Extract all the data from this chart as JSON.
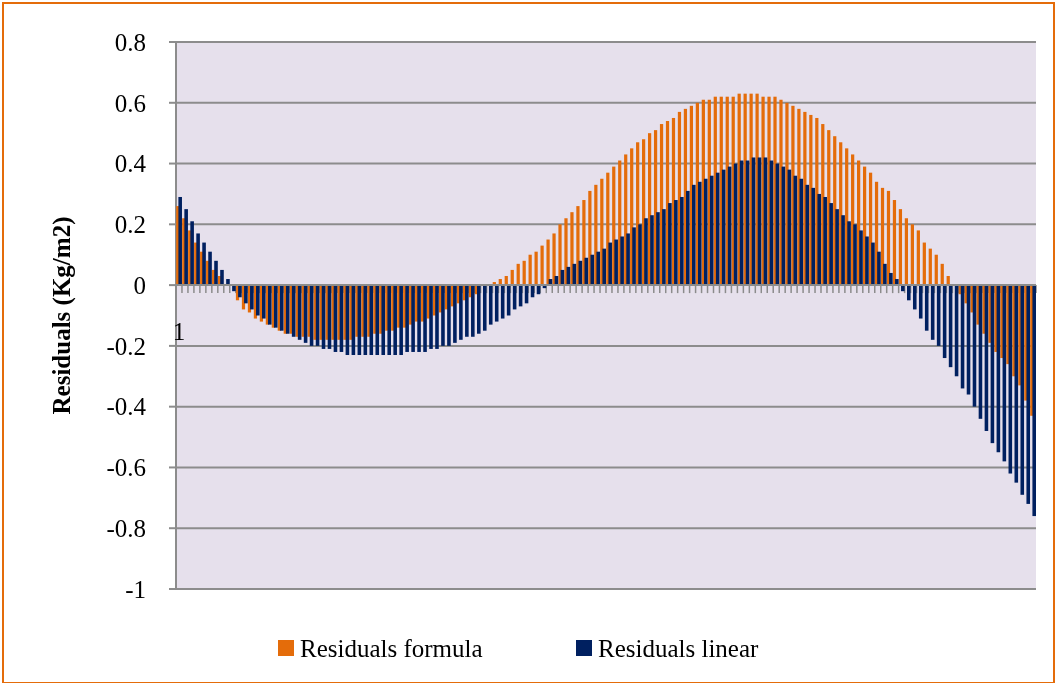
{
  "chart_data": {
    "type": "bar",
    "ylabel": "Residuals (Kg/m2)",
    "categories": [
      "1",
      null,
      null,
      null,
      null,
      null,
      null,
      null,
      null,
      null,
      null,
      null,
      null,
      null,
      null,
      null,
      null,
      null,
      null,
      null,
      null,
      null,
      null,
      null,
      null,
      null,
      null,
      null,
      null,
      null,
      null,
      null,
      null,
      null,
      null,
      null,
      null,
      null,
      null,
      null,
      null,
      null,
      null,
      null,
      null,
      null,
      null,
      null,
      null,
      null,
      null,
      null,
      null,
      null,
      null,
      null,
      null,
      null,
      null,
      null,
      null,
      null,
      null,
      null,
      null,
      null,
      null,
      null,
      null,
      null,
      null,
      null,
      null,
      null,
      null,
      null,
      null,
      null,
      null,
      null,
      null,
      null,
      null,
      null,
      null,
      null,
      null,
      null,
      null,
      null,
      null,
      null,
      null,
      null,
      null,
      null,
      null,
      null,
      null,
      null,
      null,
      null,
      null,
      null,
      null,
      null,
      null,
      null,
      null,
      null,
      null,
      null,
      null,
      null,
      null,
      null,
      null,
      null,
      null,
      null,
      null,
      null,
      null,
      null,
      null,
      null,
      null,
      null,
      null,
      null,
      null,
      null,
      null,
      null,
      null,
      null,
      null,
      null,
      null,
      null,
      null,
      null,
      null,
      null
    ],
    "series": [
      {
        "name": "Residuals formula",
        "color": "#e46c0a",
        "values": [
          0.26,
          0.22,
          0.18,
          0.14,
          0.11,
          0.08,
          0.05,
          0.03,
          null,
          null,
          -0.05,
          -0.08,
          -0.09,
          -0.11,
          -0.12,
          -0.13,
          -0.14,
          -0.15,
          -0.16,
          -0.16,
          -0.17,
          -0.17,
          -0.17,
          -0.18,
          -0.18,
          -0.18,
          -0.18,
          -0.18,
          -0.18,
          -0.18,
          -0.17,
          -0.17,
          -0.17,
          -0.16,
          -0.16,
          -0.15,
          -0.15,
          -0.14,
          -0.14,
          -0.13,
          -0.12,
          -0.12,
          -0.11,
          -0.1,
          -0.09,
          -0.08,
          -0.07,
          -0.06,
          -0.05,
          -0.04,
          -0.03,
          null,
          null,
          0.01,
          0.02,
          0.03,
          0.05,
          0.07,
          0.08,
          0.1,
          0.11,
          0.13,
          0.15,
          0.17,
          0.2,
          0.22,
          0.24,
          0.26,
          0.28,
          0.31,
          0.33,
          0.35,
          0.37,
          0.39,
          0.41,
          0.43,
          0.45,
          0.47,
          0.48,
          0.5,
          0.51,
          0.53,
          0.54,
          0.55,
          0.57,
          0.58,
          0.59,
          0.6,
          0.61,
          0.61,
          0.62,
          0.62,
          0.62,
          0.62,
          0.63,
          0.63,
          0.63,
          0.63,
          0.62,
          0.62,
          0.62,
          0.61,
          0.6,
          0.59,
          0.58,
          0.57,
          0.56,
          0.55,
          0.53,
          0.51,
          0.49,
          0.47,
          0.45,
          0.43,
          0.41,
          0.39,
          0.37,
          0.34,
          0.32,
          0.31,
          0.28,
          0.25,
          0.22,
          0.2,
          0.18,
          0.14,
          0.12,
          0.1,
          0.07,
          0.03,
          null,
          -0.03,
          -0.06,
          -0.09,
          -0.13,
          -0.16,
          -0.19,
          -0.22,
          -0.24,
          -0.26,
          -0.3,
          -0.33,
          -0.38,
          -0.43
        ]
      },
      {
        "name": "Residuals linear",
        "color": "#002060",
        "values": [
          0.29,
          0.25,
          0.21,
          0.17,
          0.14,
          0.11,
          0.08,
          0.05,
          0.02,
          -0.02,
          -0.04,
          -0.06,
          -0.08,
          -0.1,
          -0.11,
          -0.13,
          -0.14,
          -0.15,
          -0.16,
          -0.17,
          -0.18,
          -0.19,
          -0.2,
          -0.2,
          -0.21,
          -0.21,
          -0.22,
          -0.22,
          -0.23,
          -0.23,
          -0.23,
          -0.23,
          -0.23,
          -0.23,
          -0.23,
          -0.23,
          -0.23,
          -0.23,
          -0.22,
          -0.22,
          -0.22,
          -0.22,
          -0.21,
          -0.21,
          -0.2,
          -0.2,
          -0.19,
          -0.18,
          -0.17,
          -0.17,
          -0.16,
          -0.15,
          -0.13,
          -0.12,
          -0.11,
          -0.1,
          -0.08,
          -0.07,
          -0.06,
          -0.04,
          -0.03,
          -0.01,
          0.02,
          0.03,
          0.05,
          0.06,
          0.07,
          0.08,
          0.09,
          0.1,
          0.11,
          0.12,
          0.14,
          0.15,
          0.16,
          0.17,
          0.19,
          0.2,
          0.22,
          0.23,
          0.24,
          0.25,
          0.27,
          0.28,
          0.29,
          0.31,
          0.33,
          0.34,
          0.35,
          0.36,
          0.37,
          0.38,
          0.39,
          0.4,
          0.41,
          0.41,
          0.42,
          0.42,
          0.42,
          0.41,
          0.4,
          0.39,
          0.38,
          0.36,
          0.35,
          0.33,
          0.32,
          0.3,
          0.29,
          0.27,
          0.25,
          0.23,
          0.21,
          0.2,
          0.18,
          0.16,
          0.14,
          0.11,
          0.07,
          0.04,
          0.02,
          -0.02,
          -0.05,
          -0.08,
          -0.11,
          -0.15,
          -0.18,
          -0.2,
          -0.24,
          -0.27,
          -0.3,
          -0.34,
          -0.36,
          -0.4,
          -0.44,
          -0.48,
          -0.52,
          -0.55,
          -0.58,
          -0.62,
          -0.65,
          -0.69,
          -0.72,
          -0.76
        ]
      }
    ],
    "ylim": [
      -1,
      0.8
    ],
    "yticks": [
      -1,
      -0.8,
      -0.6,
      -0.4,
      -0.2,
      0,
      0.2,
      0.4,
      0.6,
      0.8
    ],
    "grid": "y",
    "legend": "bottom"
  }
}
